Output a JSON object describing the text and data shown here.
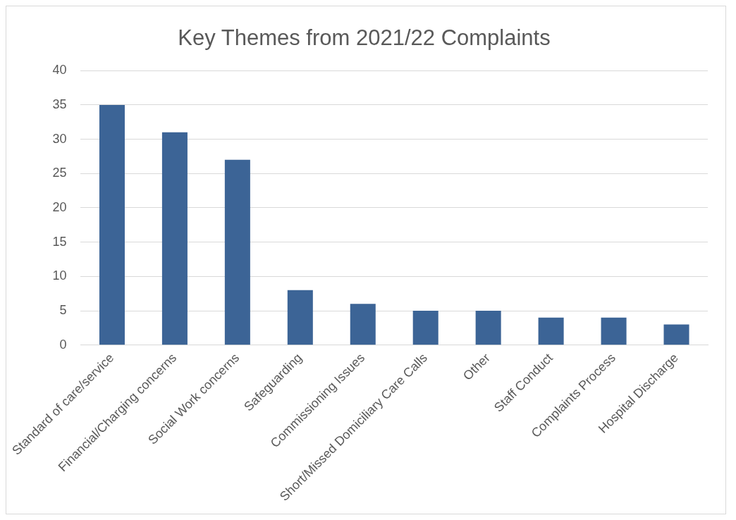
{
  "chart_data": {
    "type": "bar",
    "title": "Key Themes from 2021/22 Complaints",
    "categories": [
      "Standard of care/service",
      "Financial/Charging concerns",
      "Social Work concerns",
      "Safeguarding",
      "Commissioning Issues",
      "Short/Missed Domiciliary Care Calls",
      "Other",
      "Staff Conduct",
      "Complaints Process",
      "Hospital Discharge"
    ],
    "values": [
      35,
      31,
      27,
      8,
      6,
      5,
      5,
      4,
      4,
      3
    ],
    "color": "#3c6496",
    "ylim": [
      0,
      40
    ],
    "yticks": [
      0,
      5,
      10,
      15,
      20,
      25,
      30,
      35,
      40
    ],
    "grid": "y",
    "legend": false
  }
}
